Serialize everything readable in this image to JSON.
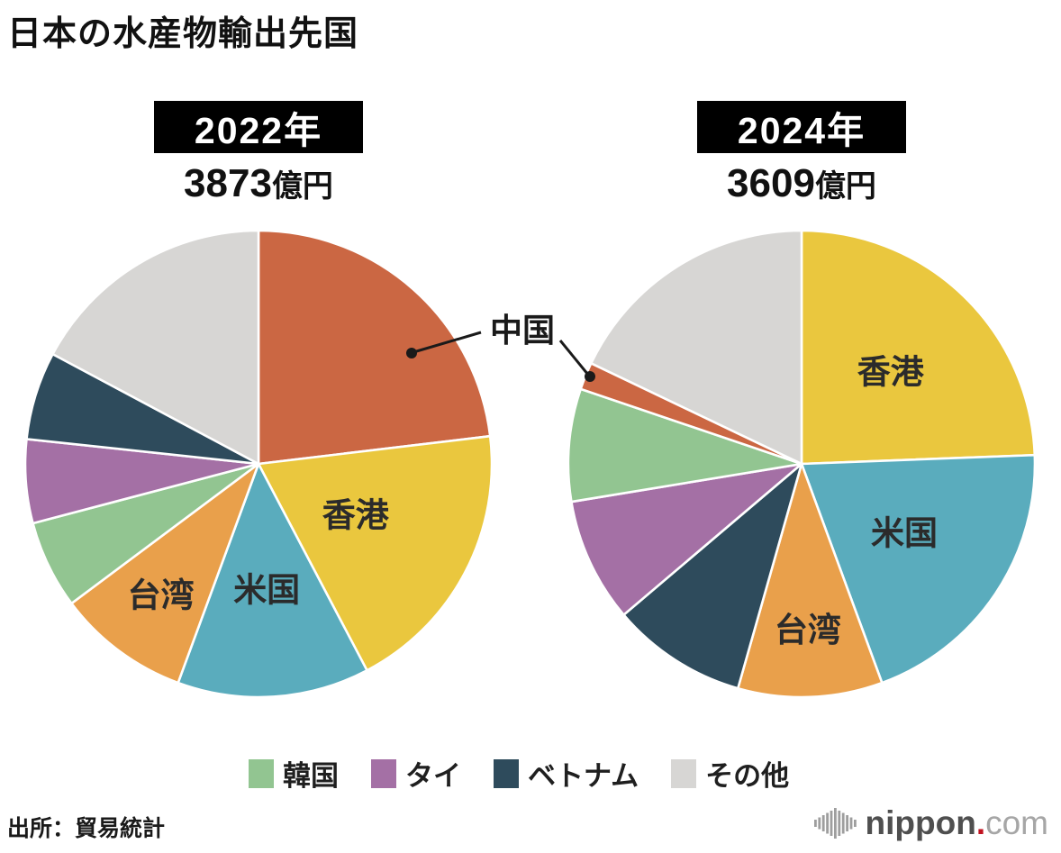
{
  "title": "日本の水産物輸出先国",
  "annotation": {
    "label": "中国"
  },
  "chart_data": [
    {
      "type": "pie",
      "year": "2022年",
      "total_value": "3873",
      "total_unit": "億円",
      "start_angle_deg": 0,
      "direction": "clockwise",
      "segments": [
        {
          "label": "中国",
          "percent": 23.1,
          "color": "#cb6743"
        },
        {
          "label": "香港",
          "percent": 19.2,
          "color": "#eac73e",
          "show_label": true
        },
        {
          "label": "米国",
          "percent": 13.3,
          "color": "#5aacbd",
          "show_label": true
        },
        {
          "label": "台湾",
          "percent": 9.2,
          "color": "#e9a04b",
          "show_label": true
        },
        {
          "label": "韓国",
          "percent": 6.1,
          "color": "#92c591"
        },
        {
          "label": "タイ",
          "percent": 5.8,
          "color": "#a470a5"
        },
        {
          "label": "ベトナム",
          "percent": 6.1,
          "color": "#2e4b5c"
        },
        {
          "label": "その他",
          "percent": 17.2,
          "color": "#d7d6d4"
        }
      ]
    },
    {
      "type": "pie",
      "year": "2024年",
      "total_value": "3609",
      "total_unit": "億円",
      "start_angle_deg": 0,
      "direction": "clockwise",
      "segments": [
        {
          "label": "香港",
          "percent": 24.4,
          "color": "#eac73e",
          "show_label": true
        },
        {
          "label": "米国",
          "percent": 20.0,
          "color": "#5aacbd",
          "show_label": true
        },
        {
          "label": "台湾",
          "percent": 10.0,
          "color": "#e9a04b",
          "show_label": true
        },
        {
          "label": "ベトナム",
          "percent": 9.4,
          "color": "#2e4b5c"
        },
        {
          "label": "タイ",
          "percent": 8.6,
          "color": "#a470a5"
        },
        {
          "label": "韓国",
          "percent": 7.8,
          "color": "#92c591"
        },
        {
          "label": "中国",
          "percent": 1.9,
          "color": "#cb6743"
        },
        {
          "label": "その他",
          "percent": 17.9,
          "color": "#d7d6d4"
        }
      ]
    }
  ],
  "legend": [
    {
      "label": "韓国",
      "color": "#92c591"
    },
    {
      "label": "タイ",
      "color": "#a470a5"
    },
    {
      "label": "ベトナム",
      "color": "#2e4b5c"
    },
    {
      "label": "その他",
      "color": "#d7d6d4"
    }
  ],
  "source": "出所：貿易統計",
  "logo": {
    "brand": "nippon",
    "dot": ".",
    "tld": "com"
  },
  "colors": {
    "background": "#ffffff",
    "badge_bg": "#000000",
    "badge_text": "#ffffff",
    "annotation_line": "#1a1a1a",
    "logo_dot": "#c11320"
  }
}
